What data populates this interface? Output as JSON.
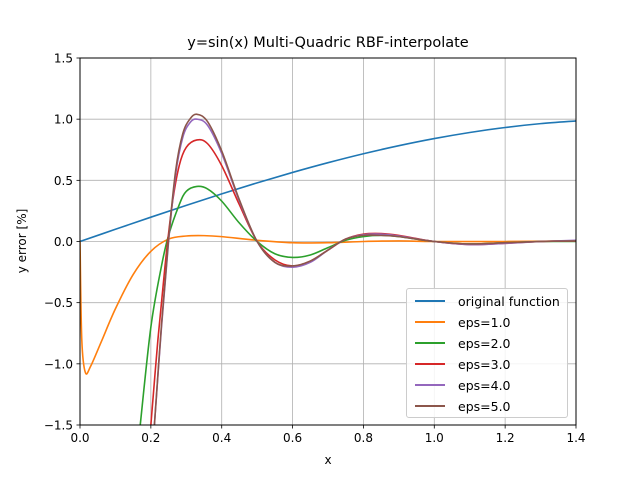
{
  "chart_data": {
    "type": "line",
    "title": "y=sin(x) Multi-Quadric RBF-interpolate",
    "xlabel": "x",
    "ylabel": "y error [%]",
    "xlim": [
      0.0,
      1.4
    ],
    "ylim": [
      -1.5,
      1.5
    ],
    "xticks": [
      "0.0",
      "0.2",
      "0.4",
      "0.6",
      "0.8",
      "1.0",
      "1.2",
      "1.4"
    ],
    "yticks": [
      "1.5",
      "1.0",
      "0.5",
      "0.0",
      "−0.5",
      "−1.0",
      "−1.5"
    ],
    "grid": true,
    "legend_position": "lower right",
    "series": [
      {
        "name": "original function",
        "color": "#1f77b4",
        "x": [
          0.0,
          0.1,
          0.2,
          0.3,
          0.4,
          0.5,
          0.6,
          0.7,
          0.8,
          0.9,
          1.0,
          1.1,
          1.2,
          1.3,
          1.4
        ],
        "y": [
          0.0,
          0.0998,
          0.1987,
          0.2955,
          0.3894,
          0.4794,
          0.5646,
          0.6442,
          0.7174,
          0.7833,
          0.8415,
          0.8912,
          0.932,
          0.9636,
          0.9854
        ]
      },
      {
        "name": "eps=1.0",
        "color": "#ff7f0e",
        "x": [
          0.0,
          0.005,
          0.015,
          0.03,
          0.06,
          0.1,
          0.15,
          0.2,
          0.25,
          0.3,
          0.35,
          0.4,
          0.5,
          0.6,
          0.7,
          0.8,
          0.9,
          1.0,
          1.2,
          1.4
        ],
        "y": [
          0.0,
          -0.8,
          -1.07,
          -1.02,
          -0.82,
          -0.55,
          -0.27,
          -0.08,
          0.02,
          0.045,
          0.048,
          0.04,
          0.01,
          -0.01,
          -0.01,
          0.0,
          0.005,
          0.0,
          0.0,
          0.005
        ]
      },
      {
        "name": "eps=2.0",
        "color": "#2ca02c",
        "x": [
          0.17,
          0.2,
          0.23,
          0.25,
          0.28,
          0.3,
          0.33,
          0.36,
          0.4,
          0.45,
          0.5,
          0.55,
          0.6,
          0.65,
          0.7,
          0.75,
          0.8,
          0.85,
          0.9,
          1.0,
          1.1,
          1.2,
          1.3,
          1.4
        ],
        "y": [
          -1.5,
          -0.7,
          -0.2,
          0.05,
          0.3,
          0.41,
          0.45,
          0.43,
          0.33,
          0.15,
          0.0,
          -0.1,
          -0.13,
          -0.11,
          -0.05,
          0.01,
          0.04,
          0.05,
          0.04,
          0.0,
          -0.02,
          -0.01,
          0.0,
          0.0
        ]
      },
      {
        "name": "eps=3.0",
        "color": "#d62728",
        "x": [
          0.2,
          0.22,
          0.24,
          0.26,
          0.28,
          0.3,
          0.33,
          0.36,
          0.4,
          0.45,
          0.5,
          0.55,
          0.6,
          0.65,
          0.7,
          0.75,
          0.8,
          0.85,
          0.9,
          1.0,
          1.1,
          1.2,
          1.3,
          1.4
        ],
        "y": [
          -1.5,
          -0.8,
          -0.2,
          0.3,
          0.62,
          0.77,
          0.83,
          0.8,
          0.62,
          0.3,
          0.0,
          -0.15,
          -0.2,
          -0.16,
          -0.07,
          0.02,
          0.06,
          0.065,
          0.05,
          0.0,
          -0.025,
          -0.015,
          0.0,
          0.005
        ]
      },
      {
        "name": "eps=4.0",
        "color": "#9467bd",
        "x": [
          0.21,
          0.23,
          0.25,
          0.27,
          0.29,
          0.31,
          0.33,
          0.36,
          0.4,
          0.45,
          0.5,
          0.55,
          0.6,
          0.65,
          0.7,
          0.75,
          0.8,
          0.85,
          0.9,
          1.0,
          1.1,
          1.2,
          1.3,
          1.4
        ],
        "y": [
          -1.5,
          -0.7,
          0.0,
          0.55,
          0.85,
          0.97,
          1.0,
          0.95,
          0.72,
          0.33,
          0.0,
          -0.17,
          -0.21,
          -0.17,
          -0.07,
          0.02,
          0.055,
          0.06,
          0.045,
          0.0,
          -0.025,
          -0.015,
          0.0,
          0.01
        ]
      },
      {
        "name": "eps=5.0",
        "color": "#8c564b",
        "x": [
          0.21,
          0.23,
          0.25,
          0.27,
          0.29,
          0.31,
          0.33,
          0.36,
          0.4,
          0.45,
          0.5,
          0.55,
          0.6,
          0.65,
          0.7,
          0.75,
          0.8,
          0.85,
          0.9,
          1.0,
          1.1,
          1.2,
          1.3,
          1.4
        ],
        "y": [
          -1.5,
          -0.68,
          0.02,
          0.58,
          0.88,
          1.0,
          1.04,
          0.98,
          0.74,
          0.34,
          0.0,
          -0.17,
          -0.2,
          -0.16,
          -0.07,
          0.02,
          0.05,
          0.05,
          0.04,
          0.0,
          -0.02,
          -0.01,
          0.0,
          0.005
        ]
      }
    ]
  }
}
